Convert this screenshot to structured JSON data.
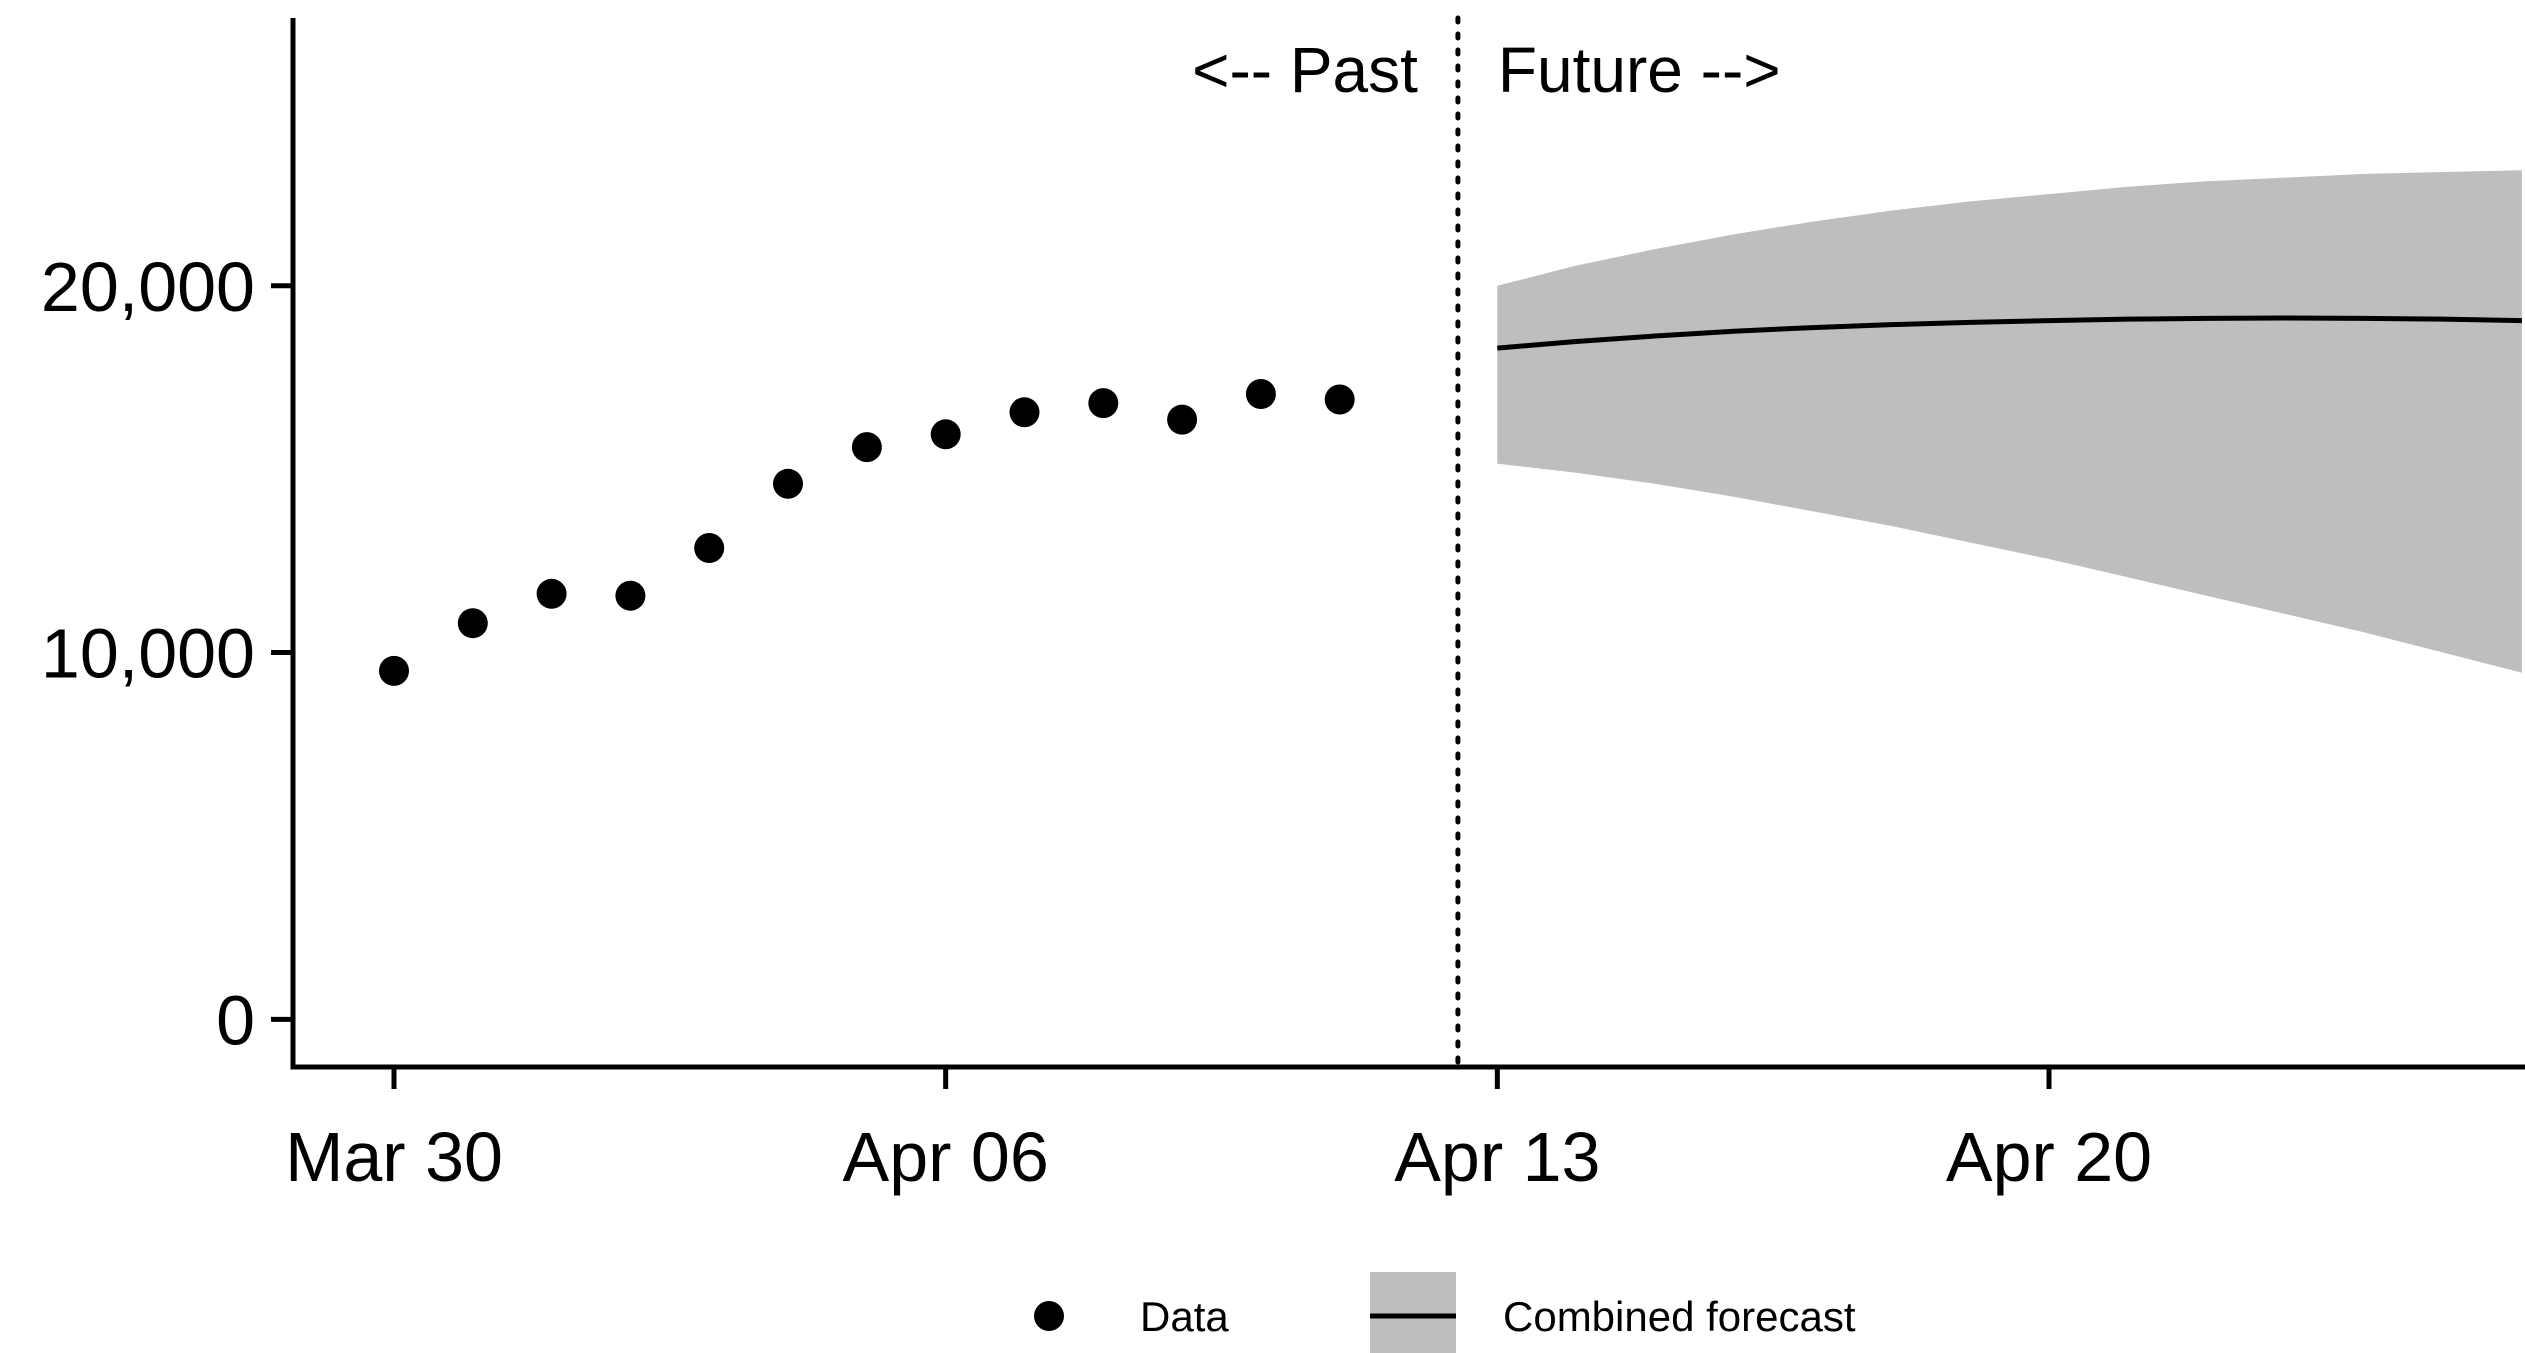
{
  "chart_data": {
    "type": "scatter",
    "title": "",
    "xlabel": "",
    "ylabel": "",
    "x_axis": {
      "type": "date",
      "range": [
        "2020-03-29",
        "2020-04-27"
      ],
      "ticks": [
        "2020-03-30",
        "2020-04-06",
        "2020-04-13",
        "2020-04-20"
      ],
      "tick_labels": [
        "Mar 30",
        "Apr 06",
        "Apr 13",
        "Apr 20"
      ]
    },
    "y_axis": {
      "range": [
        -1300,
        27300
      ],
      "ticks": [
        0,
        10000,
        20000
      ],
      "tick_labels": [
        "0",
        "10,000",
        "20,000"
      ]
    },
    "grid": false,
    "series": [
      {
        "name": "Data",
        "kind": "points",
        "x": [
          "2020-03-30",
          "2020-03-31",
          "2020-04-01",
          "2020-04-02",
          "2020-04-03",
          "2020-04-04",
          "2020-04-05",
          "2020-04-06",
          "2020-04-07",
          "2020-04-08",
          "2020-04-09",
          "2020-04-10",
          "2020-04-11"
        ],
        "y": [
          9500,
          10800,
          11600,
          11550,
          12850,
          14600,
          15600,
          15950,
          16550,
          16800,
          16350,
          17050,
          16900
        ]
      },
      {
        "name": "Combined forecast",
        "kind": "line_with_band",
        "x": [
          "2020-04-13",
          "2020-04-14",
          "2020-04-15",
          "2020-04-16",
          "2020-04-17",
          "2020-04-18",
          "2020-04-19",
          "2020-04-20",
          "2020-04-21",
          "2020-04-22",
          "2020-04-23",
          "2020-04-24",
          "2020-04-25",
          "2020-04-26"
        ],
        "y": [
          18300,
          18480,
          18630,
          18760,
          18860,
          18940,
          19000,
          19050,
          19090,
          19110,
          19120,
          19110,
          19090,
          19050
        ],
        "lower": [
          15150,
          14900,
          14600,
          14250,
          13850,
          13450,
          13000,
          12550,
          12050,
          11550,
          11050,
          10550,
          10000,
          9450
        ],
        "upper": [
          20000,
          20550,
          21000,
          21400,
          21750,
          22050,
          22300,
          22500,
          22700,
          22850,
          22950,
          23050,
          23100,
          23150
        ]
      }
    ],
    "annotations": [
      {
        "text": "<-- Past",
        "x": "2020-04-12.5",
        "anchor": "end"
      },
      {
        "text": "Future -->",
        "x": "2020-04-12.5",
        "anchor": "start"
      }
    ],
    "vline": {
      "x": "2020-04-12.5",
      "style": "dotted"
    },
    "legend": {
      "position": "bottom",
      "items": [
        {
          "label": "Data",
          "symbol": "point"
        },
        {
          "label": "Combined forecast",
          "symbol": "line-with-band"
        }
      ]
    },
    "colors": {
      "points": "#000000",
      "line": "#000000",
      "band": "#bebebe",
      "axis": "#000000"
    }
  }
}
